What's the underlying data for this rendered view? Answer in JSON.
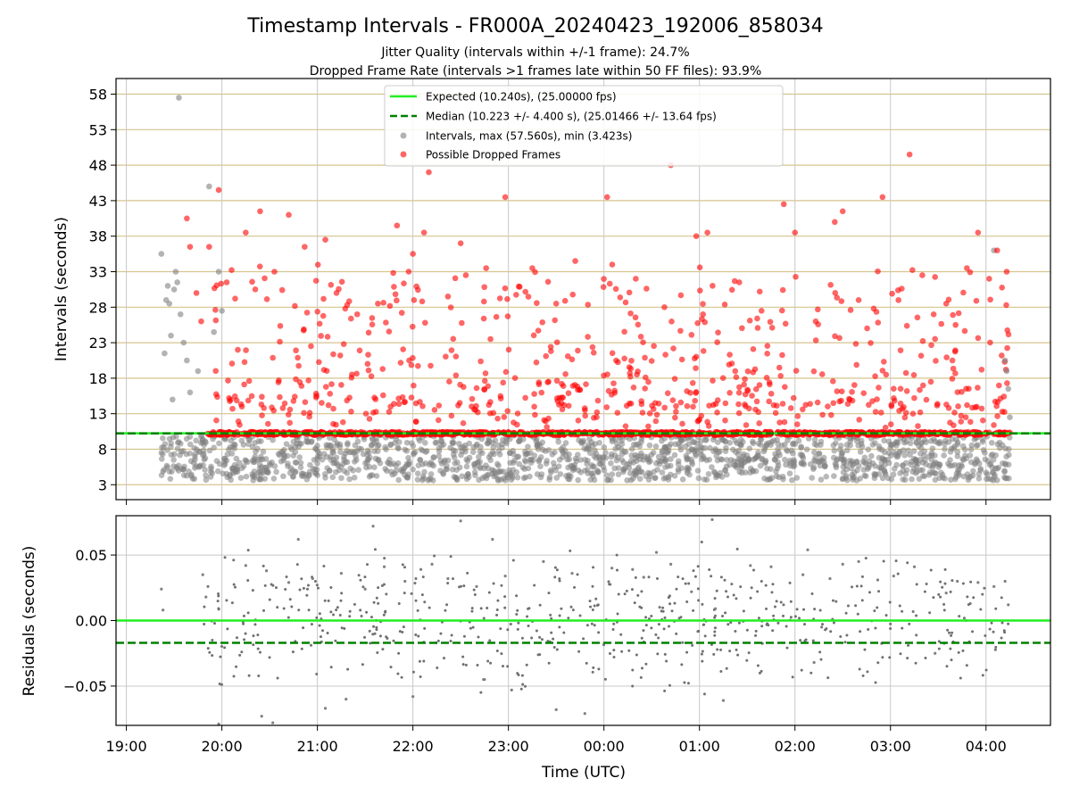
{
  "chart_data": [
    {
      "type": "scatter",
      "title": "Timestamp Intervals - FR000A_20240423_192006_858034",
      "subtitles": [
        "Jitter Quality (intervals within +/-1 frame): 24.7%",
        "Dropped Frame Rate (intervals >1 frames late within 50 FF files): 93.9%"
      ],
      "xlabel": "",
      "ylabel": "Intervals (seconds)",
      "ylim": [
        0.9,
        60.2
      ],
      "yticks": [
        "3",
        "8",
        "13",
        "18",
        "23",
        "28",
        "33",
        "38",
        "43",
        "48",
        "53",
        "58"
      ],
      "grid": true,
      "legend_position": "upper center",
      "legend": [
        {
          "label": "Expected (10.240s), (25.00000 fps)",
          "kind": "solid-line",
          "color": "#22ee22"
        },
        {
          "label": "Median (10.223 +/- 4.400 s), (25.01466 +/- 13.64 fps)",
          "kind": "dashed-line",
          "color": "#008000"
        },
        {
          "label": "Intervals, max (57.560s), min (3.423s)",
          "kind": "marker",
          "color": "#808080"
        },
        {
          "label": "Possible Dropped Frames",
          "kind": "marker",
          "color": "#ff0000"
        }
      ],
      "expected_interval": 10.24,
      "median_interval": 10.223,
      "max_interval": 57.56,
      "min_interval": 3.423,
      "series": [
        {
          "name": "Intervals, max (57.560s), min (3.423s)",
          "color": "#808080",
          "points": [
            [
              "19:22",
              35.5
            ],
            [
              "19:24",
              21.5
            ],
            [
              "19:25",
              29.0
            ],
            [
              "19:26",
              31.0
            ],
            [
              "19:27",
              28.5
            ],
            [
              "19:28",
              24.0
            ],
            [
              "19:29",
              15.0
            ],
            [
              "19:30",
              30.5
            ],
            [
              "19:31",
              33.0
            ],
            [
              "19:32",
              31.5
            ],
            [
              "19:33",
              57.5
            ],
            [
              "19:34",
              27.0
            ],
            [
              "19:36",
              23.0
            ],
            [
              "19:38",
              20.5
            ],
            [
              "19:40",
              16.0
            ],
            [
              "19:45",
              19.0
            ],
            [
              "19:52",
              45.0
            ],
            [
              "19:55",
              24.5
            ],
            [
              "19:58",
              33.0
            ],
            [
              "20:00",
              27.5
            ],
            [
              "04:05",
              36.0
            ],
            [
              "04:12",
              20.5
            ],
            [
              "04:13",
              19.0
            ],
            [
              "04:14",
              16.5
            ],
            [
              "04:15",
              12.5
            ]
          ]
        },
        {
          "name": "Possible Dropped Frames",
          "color": "#ff0000",
          "points": [
            [
              "19:38",
              40.5
            ],
            [
              "19:40",
              36.5
            ],
            [
              "19:44",
              30.0
            ],
            [
              "19:47",
              26.0
            ],
            [
              "19:52",
              36.5
            ],
            [
              "19:58",
              44.5
            ],
            [
              "20:03",
              31.5
            ],
            [
              "20:10",
              22.0
            ],
            [
              "20:15",
              38.5
            ],
            [
              "20:24",
              41.5
            ],
            [
              "20:33",
              33.0
            ],
            [
              "20:42",
              41.0
            ],
            [
              "20:52",
              36.5
            ],
            [
              "21:05",
              37.5
            ],
            [
              "21:12",
              30.0
            ],
            [
              "21:25",
              27.0
            ],
            [
              "21:38",
              28.5
            ],
            [
              "21:50",
              39.5
            ],
            [
              "22:00",
              35.5
            ],
            [
              "22:07",
              38.5
            ],
            [
              "22:10",
              47.0
            ],
            [
              "22:22",
              29.5
            ],
            [
              "22:30",
              37.0
            ],
            [
              "22:46",
              33.5
            ],
            [
              "22:58",
              43.5
            ],
            [
              "23:15",
              33.5
            ],
            [
              "23:30",
              28.5
            ],
            [
              "23:42",
              34.5
            ],
            [
              "00:02",
              43.5
            ],
            [
              "00:20",
              32.0
            ],
            [
              "00:38",
              28.0
            ],
            [
              "00:42",
              48.0
            ],
            [
              "00:58",
              38.0
            ],
            [
              "01:05",
              38.5
            ],
            [
              "01:25",
              31.5
            ],
            [
              "01:39",
              27.5
            ],
            [
              "01:53",
              42.5
            ],
            [
              "02:00",
              38.5
            ],
            [
              "02:13",
              26.0
            ],
            [
              "02:25",
              40.0
            ],
            [
              "02:30",
              41.5
            ],
            [
              "02:40",
              29.0
            ],
            [
              "02:55",
              43.5
            ],
            [
              "03:05",
              29.0
            ],
            [
              "03:12",
              49.5
            ],
            [
              "03:20",
              32.5
            ],
            [
              "03:35",
              28.5
            ],
            [
              "03:48",
              33.5
            ],
            [
              "03:55",
              38.5
            ],
            [
              "04:02",
              32.0
            ],
            [
              "04:07",
              36.0
            ],
            [
              "04:13",
              33.0
            ]
          ]
        }
      ]
    },
    {
      "type": "scatter",
      "xlabel": "Time (UTC)",
      "ylabel": "Residuals (seconds)",
      "ylim": [
        -0.08,
        0.08
      ],
      "yticks": [
        "−0.05",
        "0.00",
        "0.05"
      ],
      "xticks": [
        "19:00",
        "20:00",
        "21:00",
        "22:00",
        "23:00",
        "00:00",
        "01:00",
        "02:00",
        "03:00",
        "04:00"
      ],
      "grid": true,
      "expected_residual": 0.0,
      "median_residual": -0.017,
      "series": [
        {
          "name": "",
          "color": "#808080",
          "points": [
            [
              "19:22",
              0.024
            ],
            [
              "19:23",
              0.008
            ],
            [
              "19:48",
              0.035
            ],
            [
              "19:50",
              0.018
            ],
            [
              "19:58",
              -0.079
            ],
            [
              "20:15",
              0.042
            ],
            [
              "20:25",
              -0.073
            ],
            [
              "20:28",
              0.038
            ],
            [
              "20:32",
              -0.078
            ],
            [
              "20:42",
              0.029
            ],
            [
              "20:48",
              0.062
            ],
            [
              "20:57",
              0.032
            ],
            [
              "21:05",
              -0.067
            ],
            [
              "21:15",
              0.036
            ],
            [
              "21:18",
              -0.06
            ],
            [
              "21:30",
              0.024
            ],
            [
              "21:35",
              0.072
            ],
            [
              "21:42",
              0.041
            ],
            [
              "21:55",
              0.03
            ],
            [
              "22:00",
              -0.058
            ],
            [
              "22:05",
              0.039
            ],
            [
              "22:12",
              0.043
            ],
            [
              "22:22",
              0.032
            ],
            [
              "22:30",
              0.076
            ],
            [
              "22:40",
              0.026
            ],
            [
              "22:45",
              -0.045
            ],
            [
              "22:50",
              0.062
            ],
            [
              "22:58",
              0.034
            ],
            [
              "23:02",
              -0.053
            ],
            [
              "23:22",
              0.045
            ],
            [
              "23:30",
              -0.068
            ],
            [
              "23:40",
              0.036
            ],
            [
              "23:48",
              -0.071
            ],
            [
              "00:05",
              0.04
            ],
            [
              "00:18",
              0.039
            ],
            [
              "00:25",
              0.033
            ],
            [
              "00:33",
              0.052
            ],
            [
              "00:42",
              0.043
            ],
            [
              "00:55",
              0.022
            ],
            [
              "01:08",
              0.077
            ],
            [
              "01:10",
              0.009
            ],
            [
              "01:15",
              -0.061
            ],
            [
              "01:32",
              0.042
            ],
            [
              "01:45",
              0.041
            ],
            [
              "02:05",
              0.035
            ],
            [
              "02:08",
              0.054
            ],
            [
              "02:12",
              -0.032
            ],
            [
              "02:22",
              0.032
            ],
            [
              "02:30",
              0.043
            ],
            [
              "02:40",
              0.045
            ],
            [
              "02:52",
              0.031
            ],
            [
              "03:02",
              0.034
            ],
            [
              "03:15",
              0.041
            ],
            [
              "03:28",
              -0.025
            ],
            [
              "03:35",
              0.021
            ],
            [
              "03:42",
              0.03
            ],
            [
              "03:55",
              0.029
            ],
            [
              "04:05",
              0.026
            ],
            [
              "04:12",
              0.03
            ],
            [
              "04:14",
              0.012
            ]
          ]
        }
      ]
    }
  ]
}
